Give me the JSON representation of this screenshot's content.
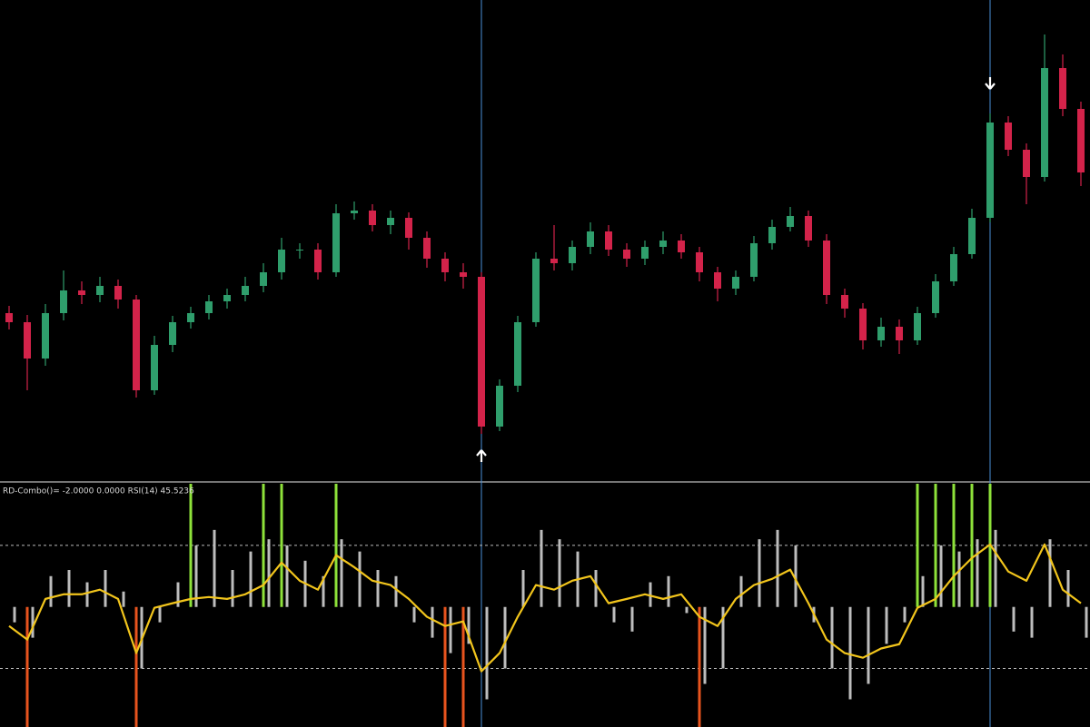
{
  "chart_data": [
    {
      "type": "candlestick",
      "ylim": [
        0,
        530
      ],
      "up_color": "#2f9e6c",
      "down_color": "#d3234a",
      "open": [
        185,
        175,
        135,
        185,
        210,
        205,
        215,
        200,
        100,
        150,
        175,
        185,
        198,
        205,
        215,
        230,
        255,
        255,
        230,
        295,
        298,
        282,
        290,
        268,
        245,
        230,
        225,
        60,
        105,
        175,
        245,
        240,
        258,
        275,
        255,
        245,
        258,
        265,
        252,
        230,
        212,
        225,
        262,
        280,
        292,
        265,
        205,
        190,
        155,
        170,
        155,
        185,
        220,
        250,
        290,
        395,
        365,
        335,
        455,
        410
      ],
      "high": [
        193,
        183,
        195,
        232,
        220,
        225,
        222,
        205,
        160,
        182,
        192,
        205,
        212,
        225,
        240,
        268,
        262,
        262,
        305,
        308,
        305,
        298,
        296,
        275,
        252,
        240,
        230,
        112,
        182,
        252,
        282,
        265,
        285,
        282,
        262,
        265,
        275,
        272,
        258,
        236,
        232,
        270,
        288,
        302,
        298,
        272,
        212,
        196,
        180,
        178,
        192,
        228,
        258,
        300,
        405,
        402,
        372,
        492,
        470,
        418
      ],
      "low": [
        167,
        100,
        127,
        177,
        195,
        197,
        190,
        92,
        95,
        142,
        168,
        178,
        190,
        198,
        208,
        222,
        245,
        222,
        225,
        288,
        275,
        272,
        255,
        235,
        220,
        212,
        52,
        55,
        98,
        170,
        232,
        232,
        250,
        248,
        236,
        238,
        250,
        245,
        220,
        198,
        205,
        220,
        255,
        275,
        258,
        195,
        180,
        145,
        148,
        140,
        150,
        180,
        215,
        245,
        285,
        358,
        305,
        330,
        402,
        325
      ],
      "close": [
        175,
        135,
        185,
        210,
        205,
        215,
        200,
        100,
        150,
        175,
        185,
        198,
        205,
        215,
        230,
        255,
        255,
        230,
        295,
        298,
        282,
        290,
        268,
        245,
        230,
        225,
        60,
        105,
        175,
        245,
        240,
        258,
        275,
        255,
        245,
        258,
        265,
        252,
        230,
        212,
        225,
        262,
        280,
        292,
        265,
        205,
        190,
        155,
        170,
        155,
        185,
        220,
        250,
        290,
        395,
        365,
        335,
        455,
        410,
        340
      ],
      "arrows_up": [
        26
      ],
      "arrows_down": [
        54
      ],
      "cursor_color": "#4a90d9"
    },
    {
      "type": "line",
      "text": "RD-Combo()=  -2.0000 0.0000  RSI(14) 45.5236",
      "ylim": [
        11,
        90
      ],
      "levels": [
        30,
        70
      ],
      "values": [
        43.8,
        39.4,
        52.6,
        54.1,
        54.1,
        55.6,
        52.6,
        35.0,
        49.7,
        51.2,
        52.6,
        53.2,
        52.6,
        54.1,
        57.1,
        64.4,
        58.5,
        55.6,
        66.8,
        62.9,
        58.5,
        57.1,
        52.6,
        46.8,
        43.8,
        45.3,
        29.1,
        35.0,
        46.8,
        57.1,
        55.6,
        58.5,
        60.0,
        51.2,
        52.6,
        54.1,
        52.6,
        54.1,
        46.8,
        43.8,
        52.6,
        57.1,
        59.1,
        62.1,
        51.2,
        39.4,
        35.0,
        33.5,
        36.5,
        37.9,
        49.7,
        52.6,
        60.0,
        65.9,
        70.3,
        61.5,
        58.5,
        70.3,
        55.6,
        51.2
      ],
      "color": "#f2c51c",
      "bars": {
        "baseline": 50,
        "color": "#bdbdbd",
        "values": [
          45,
          40,
          60,
          62,
          58,
          62,
          55,
          30,
          45,
          58,
          70,
          75,
          62,
          68,
          72,
          70,
          65,
          60,
          72,
          68,
          62,
          60,
          45,
          40,
          35,
          38,
          20,
          30,
          62,
          75,
          72,
          68,
          62,
          45,
          42,
          58,
          60,
          48,
          25,
          30,
          60,
          72,
          75,
          70,
          45,
          30,
          20,
          25,
          38,
          45,
          60,
          70,
          68,
          72,
          75,
          42,
          40,
          72,
          62,
          40
        ]
      },
      "up_signals": [
        10,
        14,
        15,
        18,
        50,
        51,
        52,
        53,
        54
      ],
      "up_color": "#8ee23a",
      "down_signals": [
        1,
        7,
        24,
        25,
        38
      ],
      "down_color": "#e8541e"
    }
  ]
}
